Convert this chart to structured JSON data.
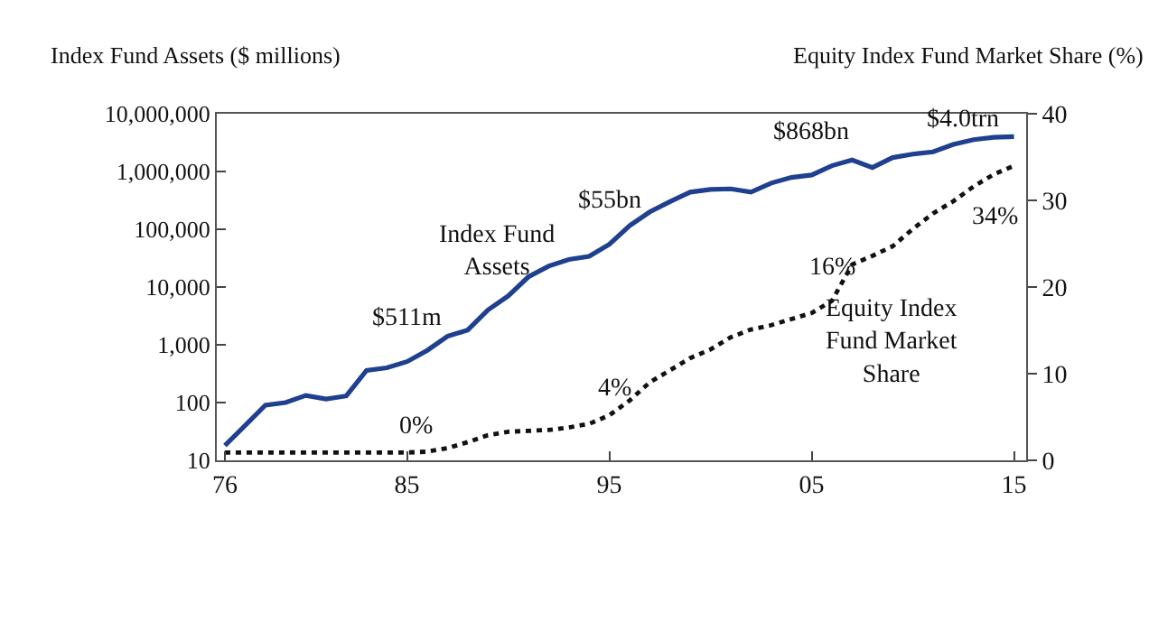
{
  "chart_data": {
    "type": "line",
    "ylabel": "Index Fund Assets ($ millions)",
    "y2label": "Equity Index Fund Market Share (%)",
    "x": [
      1976,
      1977,
      1978,
      1979,
      1980,
      1981,
      1982,
      1983,
      1984,
      1985,
      1986,
      1987,
      1988,
      1989,
      1990,
      1991,
      1992,
      1993,
      1994,
      1995,
      1996,
      1997,
      1998,
      1999,
      2000,
      2001,
      2002,
      2003,
      2004,
      2005,
      2006,
      2007,
      2008,
      2009,
      2010,
      2011,
      2012,
      2013,
      2014,
      2015
    ],
    "series": [
      {
        "color": "#1f3f8f",
        "line_style": "solid",
        "values": [
          18,
          40,
          90,
          100,
          133,
          115,
          130,
          360,
          400,
          511,
          800,
          1400,
          1800,
          4000,
          7000,
          15000,
          23000,
          30000,
          34000,
          55000,
          115000,
          200000,
          300000,
          440000,
          490000,
          500000,
          440000,
          630000,
          790000,
          868000,
          1260000,
          1580000,
          1170000,
          1740000,
          2000000,
          2190000,
          2950000,
          3550000,
          3900000,
          4000000
        ]
      },
      {
        "color": "#111111",
        "line_style": "dotted",
        "axis": "y2",
        "values": [
          0.9,
          0.9,
          0.9,
          0.9,
          0.9,
          0.9,
          0.9,
          0.9,
          0.9,
          0.9,
          1.0,
          1.4,
          2.1,
          2.9,
          3.3,
          3.4,
          3.5,
          3.8,
          4.2,
          5.2,
          6.9,
          9.0,
          10.4,
          11.8,
          12.8,
          14.2,
          15.1,
          15.6,
          16.3,
          17.0,
          18.4,
          22.6,
          23.6,
          24.7,
          26.7,
          28.5,
          29.9,
          31.6,
          33.0,
          34
        ]
      }
    ],
    "annotations": [
      {
        "text": "$511m",
        "x": 1985,
        "y": 511
      },
      {
        "text": "$55bn",
        "x": 1995,
        "y": 55000
      },
      {
        "text": "$868bn",
        "x": 2005,
        "y": 868000
      },
      {
        "text": "$4.0trn",
        "x": 2015,
        "y": 4000000
      },
      "Index Fund\nAssets",
      "0%",
      "4%",
      "16%",
      "34%",
      "Equity Index\nFund Market\nShare"
    ],
    "log": "y",
    "xlim": [
      1975.6,
      2015.6
    ],
    "xticks": [
      {
        "value": 1976,
        "label": "76"
      },
      {
        "value": 1985,
        "label": "85"
      },
      {
        "value": 1995,
        "label": "95"
      },
      {
        "value": 2005,
        "label": "05"
      },
      {
        "value": 2015,
        "label": "15"
      }
    ],
    "ylim": [
      10,
      10000000
    ],
    "yticks": [
      {
        "value": 10,
        "label": "10"
      },
      {
        "value": 100,
        "label": "100"
      },
      {
        "value": 1000,
        "label": "1,000"
      },
      {
        "value": 10000,
        "label": "10,000"
      },
      {
        "value": 100000,
        "label": "100,000"
      },
      {
        "value": 1000000,
        "label": "1,000,000"
      },
      {
        "value": 10000000,
        "label": "10,000,000"
      }
    ],
    "y2lim": [
      0,
      40
    ],
    "y2ticks": [
      0,
      10,
      20,
      30,
      40
    ],
    "marker": "none"
  }
}
